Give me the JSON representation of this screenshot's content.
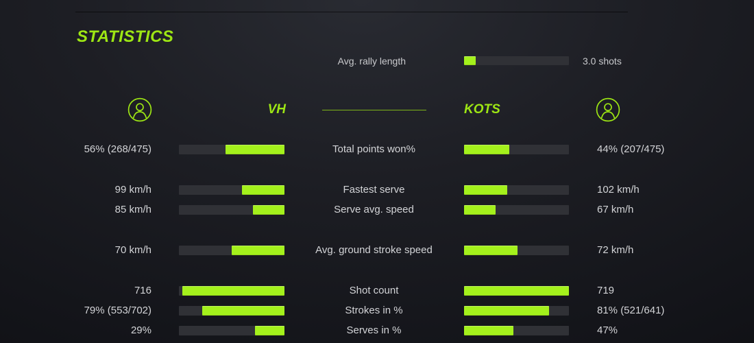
{
  "title": "STATISTICS",
  "colors": {
    "accent_green": "#9de614",
    "bar_green": "#a4f11c",
    "bar_track": "#303136",
    "text_light": "#d3d4d7"
  },
  "rally": {
    "label": "Avg. rally length",
    "value": "3.0 shots",
    "fill_pct": 11
  },
  "players": {
    "left": {
      "name": "VH",
      "icon": "user-icon"
    },
    "right": {
      "name": "KOTS",
      "icon": "user-icon"
    }
  },
  "stats": [
    {
      "label": "Total points won%",
      "left": {
        "value": "56% (268/475)",
        "pct": 56
      },
      "right": {
        "value": "44% (207/475)",
        "pct": 43
      }
    },
    {
      "label": "Fastest serve",
      "left": {
        "value": "99 km/h",
        "pct": 40
      },
      "right": {
        "value": "102 km/h",
        "pct": 41
      }
    },
    {
      "label": "Serve avg. speed",
      "left": {
        "value": "85 km/h",
        "pct": 30
      },
      "right": {
        "value": "67 km/h",
        "pct": 30
      }
    },
    {
      "label": "Avg. ground stroke speed",
      "left": {
        "value": "70 km/h",
        "pct": 50
      },
      "right": {
        "value": "72 km/h",
        "pct": 51
      }
    },
    {
      "label": "Shot count",
      "left": {
        "value": "716",
        "pct": 97
      },
      "right": {
        "value": "719",
        "pct": 100
      }
    },
    {
      "label": "Strokes in %",
      "left": {
        "value": "79% (553/702)",
        "pct": 78
      },
      "right": {
        "value": "81% (521/641)",
        "pct": 81
      }
    },
    {
      "label": "Serves in %",
      "left": {
        "value": "29%",
        "pct": 28
      },
      "right": {
        "value": "47%",
        "pct": 47
      }
    }
  ]
}
